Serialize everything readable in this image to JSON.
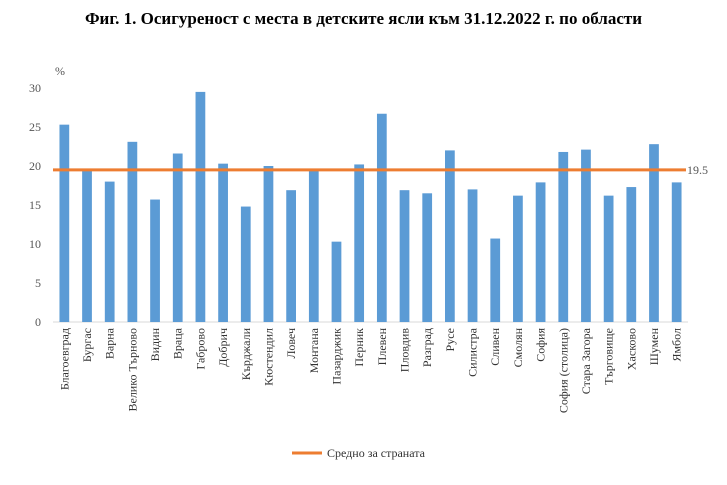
{
  "title": "Фиг. 1. Осигуреност с места в детските ясли към 31.12.2022 г. по области",
  "chart_data": {
    "type": "bar",
    "title": "Фиг. 1. Осигуреност с места в детските ясли към 31.12.2022 г. по области",
    "ylabel": "%",
    "xlabel": "",
    "ylim": [
      0,
      30
    ],
    "yticks": [
      0,
      5,
      10,
      15,
      20,
      25,
      30
    ],
    "grid": false,
    "legend": "bottom",
    "bar_color": "#5b9bd5",
    "average_color": "#ed7d31",
    "categories": [
      "Благоевград",
      "Бургас",
      "Варна",
      "Велико Търново",
      "Видин",
      "Враца",
      "Габрово",
      "Добрич",
      "Кърджали",
      "Кюстендил",
      "Ловеч",
      "Монтана",
      "Пазарджик",
      "Перник",
      "Плевен",
      "Пловдив",
      "Разград",
      "Русе",
      "Силистра",
      "Сливен",
      "Смолян",
      "София",
      "София (столица)",
      "Стара Загора",
      "Търговище",
      "Хасково",
      "Шумен",
      "Ямбол"
    ],
    "series": [
      {
        "values": [
          25.3,
          19.4,
          18.0,
          23.1,
          15.7,
          21.6,
          29.5,
          20.3,
          14.8,
          20.0,
          16.9,
          19.4,
          10.3,
          20.2,
          26.7,
          16.9,
          16.5,
          22.0,
          17.0,
          10.7,
          16.2,
          17.9,
          21.8,
          22.1,
          16.2,
          17.3,
          22.8,
          17.9
        ]
      }
    ],
    "average": {
      "name": "Средно за страната",
      "value": 19.5,
      "label": "19.5"
    }
  }
}
